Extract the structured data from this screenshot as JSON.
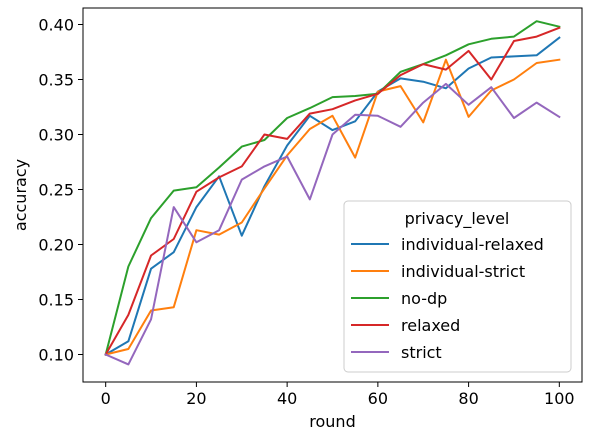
{
  "chart_data": {
    "type": "line",
    "xlabel": "round",
    "ylabel": "accuracy",
    "xlim": [
      -5,
      105
    ],
    "ylim": [
      0.075,
      0.415
    ],
    "xticks": [
      0,
      20,
      40,
      60,
      80,
      100
    ],
    "yticks": [
      0.1,
      0.15,
      0.2,
      0.25,
      0.3,
      0.35,
      0.4
    ],
    "grid": false,
    "legend": {
      "title": "privacy_level",
      "placement": "lower-right"
    },
    "x": [
      0,
      5,
      10,
      15,
      20,
      25,
      30,
      35,
      40,
      45,
      50,
      55,
      60,
      65,
      70,
      75,
      80,
      85,
      90,
      95,
      100
    ],
    "series": [
      {
        "name": "individual-relaxed",
        "color": "#1f77b4",
        "values": [
          0.1,
          0.112,
          0.178,
          0.193,
          0.234,
          0.262,
          0.208,
          0.253,
          0.29,
          0.317,
          0.304,
          0.312,
          0.339,
          0.351,
          0.348,
          0.342,
          0.36,
          0.37,
          0.371,
          0.372,
          0.388
        ]
      },
      {
        "name": "individual-strict",
        "color": "#ff7f0e",
        "values": [
          0.1,
          0.105,
          0.14,
          0.143,
          0.213,
          0.209,
          0.22,
          0.251,
          0.281,
          0.305,
          0.317,
          0.279,
          0.339,
          0.344,
          0.311,
          0.368,
          0.316,
          0.34,
          0.35,
          0.365,
          0.368
        ]
      },
      {
        "name": "no-dp",
        "color": "#2ca02c",
        "values": [
          0.1,
          0.18,
          0.224,
          0.249,
          0.252,
          0.27,
          0.289,
          0.295,
          0.315,
          0.324,
          0.334,
          0.335,
          0.337,
          0.357,
          0.364,
          0.372,
          0.382,
          0.387,
          0.389,
          0.403,
          0.398
        ]
      },
      {
        "name": "relaxed",
        "color": "#d62728",
        "values": [
          0.1,
          0.136,
          0.19,
          0.205,
          0.248,
          0.261,
          0.271,
          0.3,
          0.296,
          0.319,
          0.323,
          0.331,
          0.337,
          0.354,
          0.364,
          0.359,
          0.376,
          0.35,
          0.385,
          0.389,
          0.397
        ]
      },
      {
        "name": "strict",
        "color": "#9467bd",
        "values": [
          0.1,
          0.091,
          0.132,
          0.234,
          0.202,
          0.213,
          0.259,
          0.271,
          0.28,
          0.241,
          0.3,
          0.318,
          0.317,
          0.307,
          0.329,
          0.346,
          0.327,
          0.343,
          0.315,
          0.329,
          0.316
        ]
      }
    ]
  }
}
